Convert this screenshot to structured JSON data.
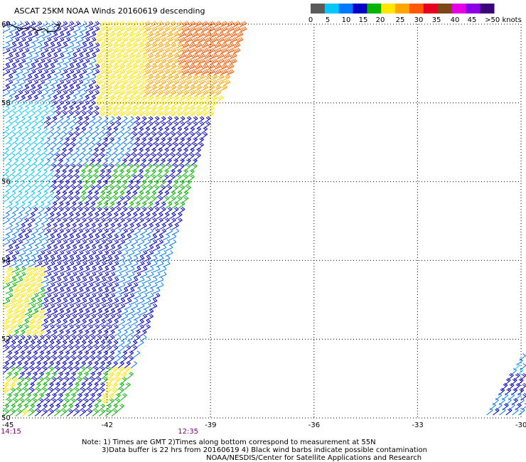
{
  "title": "ASCAT 25KM NOAA Winds 20160619 descending",
  "legend": {
    "labels": [
      "0",
      "5",
      "10",
      "15",
      "20",
      "25",
      "30",
      "35",
      "40",
      "45",
      ">50 knots"
    ],
    "colors": [
      "#5a5a5a",
      "#00c8ff",
      "#0078ff",
      "#0000c8",
      "#00b400",
      "#ffe600",
      "#ffa500",
      "#ff5a00",
      "#e6001e",
      "#7d4614",
      "#e600e6",
      "#8c00e6",
      "#3c0078"
    ]
  },
  "map": {
    "lat_labels": [
      "60",
      "58",
      "56",
      "54",
      "52",
      "50"
    ],
    "lon_labels": [
      "-45",
      "-42",
      "-39",
      "-36",
      "-33",
      "-30"
    ],
    "lat_values": [
      60,
      58,
      56,
      54,
      52,
      50
    ],
    "lon_values": [
      -45,
      -42,
      -39,
      -36,
      -33,
      -30
    ],
    "lat_range": [
      49.8,
      60.1
    ],
    "lon_range": [
      -45,
      -30
    ],
    "times": [
      "14:15",
      "12:35"
    ],
    "time_lons": [
      -45,
      -39.7
    ],
    "time_color": "#800080"
  },
  "footer": {
    "line1": "Note: 1) Times are GMT 2)Times along bottom correspond to measurement at 55N",
    "line2": "3)Data buffer is 22 hrs from 20160619 4) Black wind barbs indicate possible contamination",
    "line3": "NOAA/NESDIS/Center for Satellite Applications and Research"
  },
  "wind_palette": {
    "knots": [
      0,
      5,
      10,
      15,
      20,
      25,
      30,
      35,
      40
    ],
    "colors": [
      "#5a5a5a",
      "#00c8ff",
      "#0078ff",
      "#0000c8",
      "#00b400",
      "#ffe600",
      "#ffa500",
      "#ff5a00",
      "#e6001e"
    ]
  }
}
